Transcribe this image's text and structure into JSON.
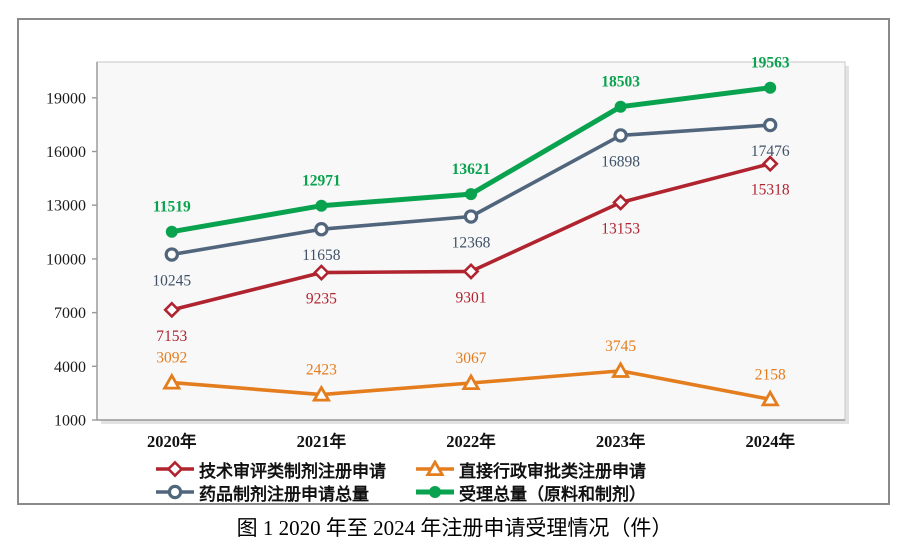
{
  "figure": {
    "caption": "图 1  2020 年至 2024 年注册申请受理情况（件）"
  },
  "chart_data": {
    "type": "line",
    "title": "",
    "categories": [
      "2020年",
      "2021年",
      "2022年",
      "2023年",
      "2024年"
    ],
    "series": [
      {
        "name": "技术审评类制剂注册申请",
        "marker": "diamond-open",
        "color": "#B0242F",
        "label_color": "#B0242F",
        "label_position": "below",
        "label_bold": false,
        "values": [
          7153,
          9235,
          9301,
          13153,
          15318
        ]
      },
      {
        "name": "直接行政审批类注册申请",
        "marker": "triangle-open",
        "color": "#E47D1E",
        "label_color": "#E47D1E",
        "label_position": "above",
        "label_bold": false,
        "values": [
          3092,
          2423,
          3067,
          3745,
          2158
        ]
      },
      {
        "name": "药品制剂注册申请总量",
        "marker": "circle-open",
        "color": "#51667D",
        "label_color": "#3F5268",
        "label_position": "below",
        "label_bold": false,
        "values": [
          10245,
          11658,
          12368,
          16898,
          17476
        ]
      },
      {
        "name": "受理总量（原料和制剂）",
        "marker": "circle-filled",
        "color": "#09A24E",
        "label_color": "#09A24E",
        "label_position": "above",
        "label_bold": true,
        "values": [
          11519,
          12971,
          13621,
          18503,
          19563
        ]
      }
    ],
    "xlabel": "",
    "ylabel": "",
    "y_axis": {
      "min": 1000,
      "max": 21000,
      "ticks": [
        1000,
        4000,
        7000,
        10000,
        13000,
        16000,
        19000
      ]
    },
    "grid": false,
    "data_labels": true,
    "legend_position": "bottom",
    "legend_columns": 2
  }
}
